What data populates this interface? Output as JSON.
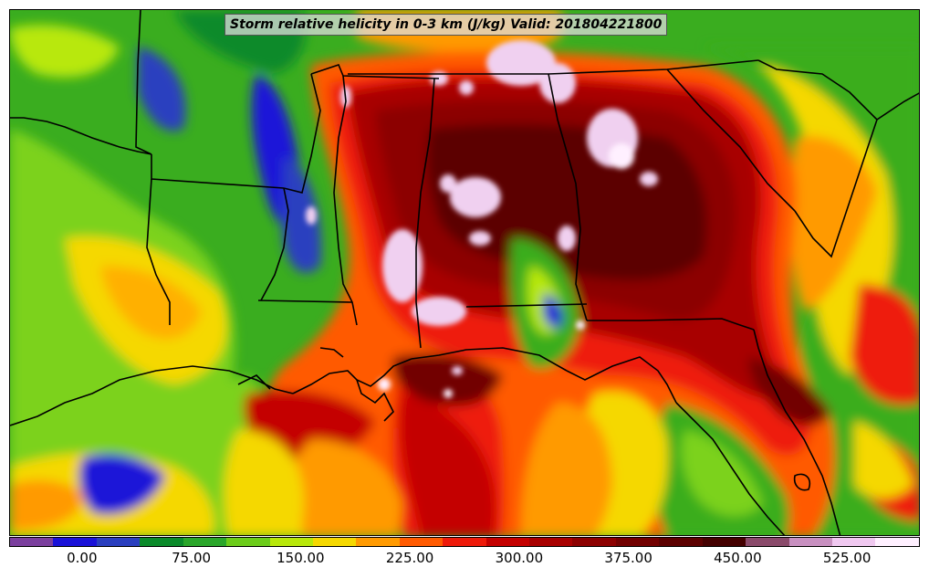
{
  "title": "Storm relative helicity in 0-3 km (J/kg) Valid: 201804221800",
  "colorbar": {
    "colors": [
      "#7b3f9e",
      "#1a12d8",
      "#2a3fbf",
      "#0a8a2a",
      "#2aa62a",
      "#6ccc1a",
      "#b8e80a",
      "#f5d800",
      "#ff9a00",
      "#ff5a00",
      "#ee1a0a",
      "#c40000",
      "#a80000",
      "#8c0000",
      "#720000",
      "#5c0000",
      "#440000",
      "#8a4a6a",
      "#c890c0",
      "#f0c8f0",
      "#fff0ff"
    ],
    "tick_labels": [
      "0.00",
      "75.00",
      "150.00",
      "225.00",
      "300.00",
      "375.00",
      "450.00",
      "525.00"
    ],
    "tick_values": [
      0,
      75,
      150,
      225,
      300,
      375,
      450,
      525
    ],
    "range": [
      -50,
      575
    ]
  },
  "legend_colors": {
    "state_borders": "#000000",
    "coastline": "#000000",
    "low_shear": "#1a12d8",
    "moderate": "#f5d800",
    "high": "#8c0000",
    "extreme": "#f0d0f0"
  }
}
